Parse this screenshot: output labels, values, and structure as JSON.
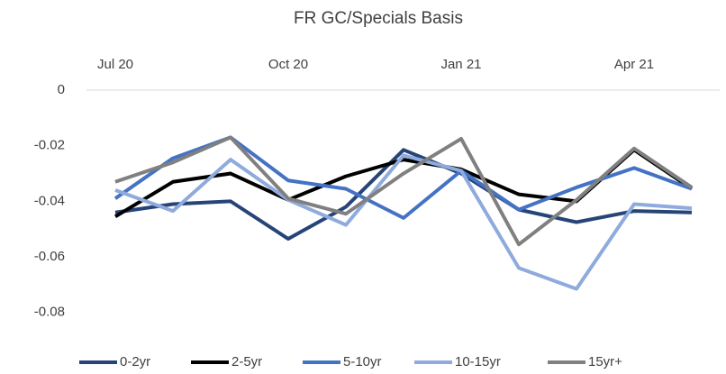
{
  "chart_data": {
    "type": "line",
    "title": "FR GC/Specials Basis",
    "categories": [
      "Jul 20",
      null,
      null,
      "Oct 20",
      null,
      null,
      "Jan 21",
      null,
      null,
      "Apr 21",
      null
    ],
    "series": [
      {
        "name": "0-2yr",
        "color": "#264478",
        "values": [
          -0.044,
          -0.041,
          -0.04,
          -0.0535,
          -0.042,
          -0.0215,
          -0.03,
          -0.043,
          -0.0475,
          -0.0435,
          -0.044
        ]
      },
      {
        "name": "2-5yr",
        "color": "#000000",
        "values": [
          -0.0455,
          -0.033,
          -0.03,
          -0.0395,
          -0.031,
          -0.025,
          -0.0285,
          -0.0375,
          -0.04,
          -0.0215,
          -0.0355
        ]
      },
      {
        "name": "5-10yr",
        "color": "#4472c4",
        "values": [
          -0.039,
          -0.0245,
          -0.017,
          -0.0325,
          -0.0355,
          -0.046,
          -0.029,
          -0.043,
          -0.035,
          -0.028,
          -0.0355
        ]
      },
      {
        "name": "10-15yr",
        "color": "#8faadc",
        "values": [
          -0.036,
          -0.0435,
          -0.025,
          -0.0395,
          -0.0485,
          -0.0235,
          -0.029,
          -0.064,
          -0.0715,
          -0.041,
          -0.0425
        ]
      },
      {
        "name": "15yr+",
        "color": "#808080",
        "values": [
          -0.033,
          -0.026,
          -0.017,
          -0.039,
          -0.0445,
          -0.03,
          -0.0175,
          -0.0555,
          -0.0395,
          -0.021,
          -0.035
        ]
      }
    ],
    "ylim": [
      -0.09,
      0
    ],
    "yticks": [
      0,
      -0.02,
      -0.04,
      -0.06,
      -0.08
    ],
    "grid": false,
    "legend": "bottom"
  }
}
